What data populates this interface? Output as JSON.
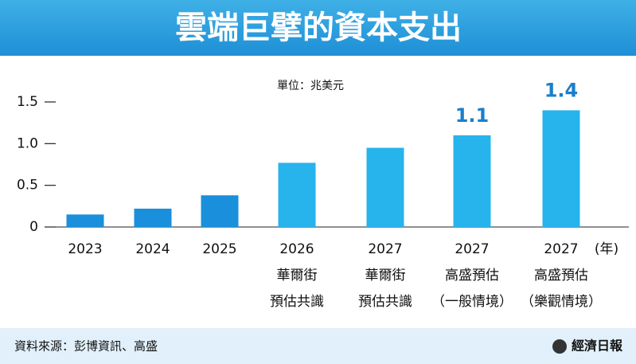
{
  "chart_data": {
    "type": "bar",
    "title": "雲端巨擘的資本支出",
    "subtitle": "單位：兆美元",
    "categories": [
      "2023",
      "2024",
      "2025",
      "2026\n華爾街\n預估共識",
      "2027\n華爾街\n預估共識",
      "2027\n高盛預估\n（一般情境）",
      "2027\n高盛預估\n（樂觀情境）"
    ],
    "values": [
      0.15,
      0.22,
      0.38,
      0.77,
      0.95,
      1.1,
      1.4
    ],
    "value_labels": [
      null,
      null,
      null,
      null,
      null,
      "1.1",
      "1.4"
    ],
    "colors": [
      "#1a8fdb",
      "#1a8fdb",
      "#1a8fdb",
      "#27b3ec",
      "#27b3ec",
      "#27b3ec",
      "#27b3ec"
    ],
    "x_label": "(年)",
    "ylim": [
      0,
      1.5
    ],
    "yticks": [
      0,
      0.5,
      {
        "value": 1,
        "label": "1.0"
      },
      1.5
    ],
    "source": "資料來源：彭博資訊、高盛",
    "publisher": "經濟日報"
  }
}
